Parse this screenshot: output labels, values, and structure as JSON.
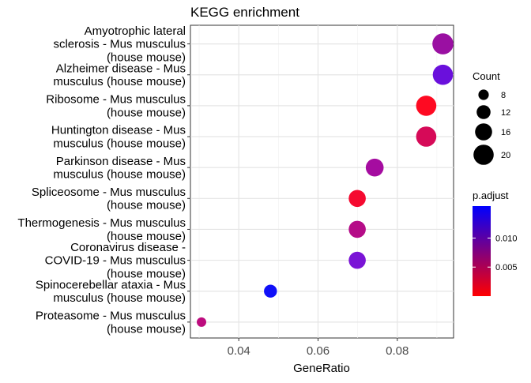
{
  "chart_data": {
    "type": "scatter",
    "title": "KEGG enrichment",
    "xlabel": "GeneRatio",
    "ylabel": "",
    "xlim": [
      0.0278,
      0.0942
    ],
    "xticks": [
      0.04,
      0.06,
      0.08
    ],
    "xtick_labels": [
      "0.04",
      "0.06",
      "0.08"
    ],
    "grid": true,
    "points": [
      {
        "label": "Amyotrophic lateral sclerosis - Mus musculus (house mouse)",
        "lines": [
          "Amyotrophic lateral",
          "sclerosis - Mus musculus",
          "(house mouse)"
        ],
        "x": 0.0915,
        "count": 21,
        "padj": 0.0085,
        "color": "#9a10a2"
      },
      {
        "label": "Alzheimer disease - Mus musculus (house mouse)",
        "lines": [
          "Alzheimer disease - Mus",
          "musculus (house mouse)"
        ],
        "x": 0.0915,
        "count": 20,
        "padj": 0.0115,
        "color": "#6a10dc"
      },
      {
        "label": "Ribosome - Mus musculus (house mouse)",
        "lines": [
          "Ribosome - Mus musculus",
          "(house mouse)"
        ],
        "x": 0.0873,
        "count": 20,
        "padj": 0.0002,
        "color": "#fe0a22"
      },
      {
        "label": "Huntington disease - Mus musculus (house mouse)",
        "lines": [
          "Huntington disease - Mus",
          "musculus (house mouse)"
        ],
        "x": 0.0873,
        "count": 20,
        "padj": 0.0045,
        "color": "#d60a58"
      },
      {
        "label": "Parkinson disease - Mus musculus (house mouse)",
        "lines": [
          "Parkinson disease - Mus",
          "musculus (house mouse)"
        ],
        "x": 0.0743,
        "count": 17,
        "padj": 0.009,
        "color": "#a50ca0"
      },
      {
        "label": "Spliceosome - Mus musculus (house mouse)",
        "lines": [
          "Spliceosome - Mus musculus",
          "(house mouse)"
        ],
        "x": 0.0699,
        "count": 16,
        "padj": 0.0008,
        "color": "#f50a30"
      },
      {
        "label": "Thermogenesis - Mus musculus (house mouse)",
        "lines": [
          "Thermogenesis - Mus musculus",
          "(house mouse)"
        ],
        "x": 0.0699,
        "count": 16,
        "padj": 0.007,
        "color": "#b50c88"
      },
      {
        "label": "Coronavirus disease - COVID-19 - Mus musculus (house mouse)",
        "lines": [
          "Coronavirus disease -",
          "COVID-19 - Mus musculus",
          "(house mouse)"
        ],
        "x": 0.0699,
        "count": 16,
        "padj": 0.0108,
        "color": "#7a14d6"
      },
      {
        "label": "Spinocerebellar ataxia - Mus musculus (house mouse)",
        "lines": [
          "Spinocerebellar ataxia - Mus",
          "musculus (house mouse)"
        ],
        "x": 0.048,
        "count": 11,
        "padj": 0.0148,
        "color": "#1010f8"
      },
      {
        "label": "Proteasome - Mus musculus (house mouse)",
        "lines": [
          "Proteasome - Mus musculus",
          "(house mouse)"
        ],
        "x": 0.0306,
        "count": 7,
        "padj": 0.0075,
        "color": "#bd0c7e"
      }
    ],
    "legend_count": {
      "title": "Count",
      "values": [
        8,
        12,
        16,
        20
      ],
      "labels": [
        "8",
        "12",
        "16",
        "20"
      ],
      "placement": "right"
    },
    "legend_color": {
      "title": "p.adjust",
      "range": [
        0.0,
        0.0155
      ],
      "ticks": [
        0.005,
        0.01
      ],
      "tick_labels": [
        "0.005",
        "0.010"
      ],
      "color_low": "#ff0000",
      "color_high": "#0000ff",
      "placement": "right"
    }
  }
}
